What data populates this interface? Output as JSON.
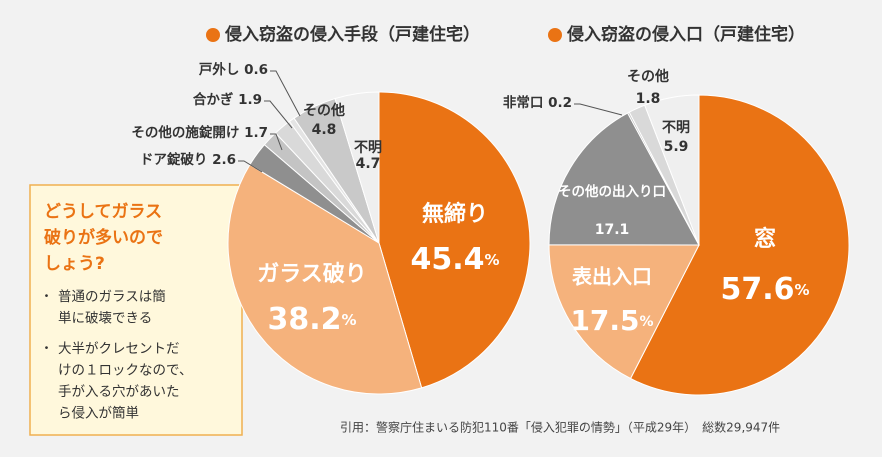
{
  "chart_data": [
    {
      "type": "pie",
      "title": "侵入窃盗の侵入手段（戸建住宅）",
      "unit": "%",
      "categories": [
        "無締り",
        "ガラス破り",
        "ドア錠破り",
        "その他の施錠開け",
        "合かぎ",
        "戸外し",
        "その他",
        "不明"
      ],
      "values": [
        45.4,
        38.2,
        2.6,
        1.7,
        1.9,
        0.6,
        4.8,
        4.7
      ],
      "colors": [
        "#ea7314",
        "#f5b27c",
        "#8f8f8f",
        "#c4c4c4",
        "#d9d9d9",
        "#e4e4e4",
        "#c9c9c9",
        "#efefef"
      ]
    },
    {
      "type": "pie",
      "title": "侵入窃盗の侵入口（戸建住宅）",
      "unit": "%",
      "categories": [
        "窓",
        "表出入口",
        "その他の出入り口",
        "非常口",
        "その他",
        "不明"
      ],
      "values": [
        57.6,
        17.5,
        17.1,
        0.2,
        1.8,
        5.9
      ],
      "colors": [
        "#ea7314",
        "#f5b27c",
        "#8f8f8f",
        "#c4c4c4",
        "#d9d9d9",
        "#efefef"
      ]
    }
  ],
  "callout": {
    "title": [
      "どうしてガラス",
      "破りが多いので",
      "しょう?"
    ],
    "items": [
      [
        "普通のガラスは簡",
        "単に破壊できる"
      ],
      [
        "大半がクレセントだ",
        "けの１ロックなので、",
        "手が入る穴があいた",
        "ら侵入が簡単"
      ]
    ]
  },
  "source": "引用：警察庁住まいる防犯110番「侵入犯罪の情勢」（平成29年）　総数29,947件"
}
